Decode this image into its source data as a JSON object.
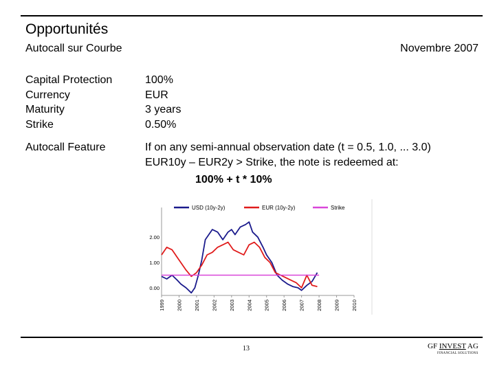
{
  "header": {
    "title": "Opportunités",
    "subtitle": "Autocall sur Courbe",
    "date": "Novembre 2007"
  },
  "specs": [
    {
      "label": "Capital Protection",
      "value": "100%"
    },
    {
      "label": "Currency",
      "value": "EUR"
    },
    {
      "label": "Maturity",
      "value": "3 years"
    },
    {
      "label": "Strike",
      "value": "0.50%"
    }
  ],
  "autocall": {
    "label": "Autocall Feature",
    "line1": "If on any semi-annual observation date (t = 0.5, 1.0, ... 3.0)",
    "line2": "EUR10y – EUR2y > Strike, the note is redeemed at:",
    "formula": "100% + t * 10%"
  },
  "colors": {
    "usd": "#1a1a8c",
    "eur": "#e01b1b",
    "strike": "#d946d9"
  },
  "chart_data": {
    "type": "line",
    "y_ticks": [
      "0.00",
      "1.00",
      "2.00"
    ],
    "ylim": [
      -0.3,
      2.9
    ],
    "xlim": [
      1999,
      2010
    ],
    "x_ticks": [
      "1999",
      "2000",
      "2001",
      "2002",
      "2003",
      "2004",
      "2005",
      "2006",
      "2007",
      "2008",
      "2009",
      "2010"
    ],
    "legend_position": "top",
    "series": [
      {
        "name": "USD (10y-2y)",
        "x": [
          1999.0,
          1999.3,
          1999.6,
          1999.9,
          2000.1,
          2000.4,
          2000.7,
          2000.9,
          2001.1,
          2001.3,
          2001.5,
          2001.7,
          2001.9,
          2002.2,
          2002.5,
          2002.8,
          2003.0,
          2003.2,
          2003.5,
          2003.8,
          2004.0,
          2004.2,
          2004.5,
          2004.8,
          2005.0,
          2005.3,
          2005.6,
          2005.9,
          2006.2,
          2006.5,
          2006.8,
          2007.0,
          2007.3,
          2007.6,
          2007.9
        ],
        "y": [
          0.45,
          0.35,
          0.5,
          0.3,
          0.15,
          0.0,
          -0.2,
          0.0,
          0.5,
          1.1,
          1.9,
          2.1,
          2.3,
          2.2,
          1.9,
          2.2,
          2.3,
          2.1,
          2.4,
          2.5,
          2.6,
          2.2,
          2.0,
          1.6,
          1.3,
          1.0,
          0.5,
          0.3,
          0.15,
          0.05,
          0.0,
          -0.1,
          0.1,
          0.25,
          0.6
        ]
      },
      {
        "name": "EUR (10y-2y)",
        "x": [
          1999.0,
          1999.3,
          1999.6,
          1999.9,
          2000.1,
          2000.4,
          2000.7,
          2001.0,
          2001.3,
          2001.6,
          2001.9,
          2002.2,
          2002.5,
          2002.8,
          2003.1,
          2003.4,
          2003.7,
          2004.0,
          2004.3,
          2004.6,
          2004.9,
          2005.2,
          2005.5,
          2005.8,
          2006.1,
          2006.4,
          2006.7,
          2007.0,
          2007.3,
          2007.6,
          2007.9
        ],
        "y": [
          1.3,
          1.6,
          1.5,
          1.2,
          1.0,
          0.7,
          0.45,
          0.6,
          0.9,
          1.3,
          1.4,
          1.6,
          1.7,
          1.8,
          1.5,
          1.4,
          1.3,
          1.7,
          1.8,
          1.6,
          1.2,
          1.0,
          0.6,
          0.5,
          0.4,
          0.3,
          0.2,
          0.0,
          0.5,
          0.1,
          0.05
        ]
      },
      {
        "name": "Strike",
        "x": [
          1999.0,
          2008.0
        ],
        "y": [
          0.5,
          0.5
        ]
      }
    ]
  },
  "footer": {
    "page": "13",
    "logo": "GFINVEST AG",
    "logo_prefix": "GF",
    "logo_main": "INVEST",
    "logo_suffix": "AG",
    "tagline": "FINANCIAL SOLUTIONS"
  }
}
